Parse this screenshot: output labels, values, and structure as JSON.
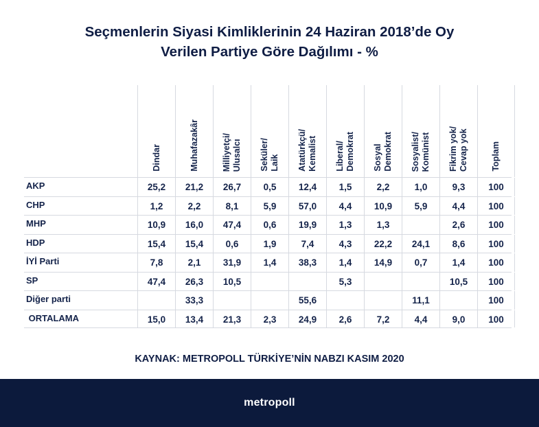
{
  "chart_data": {
    "type": "table",
    "title_line1": "Seçmenlerin Siyasi Kimliklerinin 24 Haziran 2018’de Oy",
    "title_line2": "Verilen Partiye Göre Dağılımı - %",
    "columns": [
      "Dindar",
      "Muhafazakâr",
      "Milliyetçi/\nUlusalcı",
      "Seküler/\nLaik",
      "Atatürkçü/\nKemalist",
      "Liberal/\nDemokrat",
      "Sosyal\nDemokrat",
      "Sosyalist/\nKomünist",
      "Fikrim yok/\nCevap yok",
      "Toplam"
    ],
    "rows": [
      {
        "label": "AKP",
        "values": [
          "25,2",
          "21,2",
          "26,7",
          "0,5",
          "12,4",
          "1,5",
          "2,2",
          "1,0",
          "9,3",
          "100"
        ]
      },
      {
        "label": "CHP",
        "values": [
          "1,2",
          "2,2",
          "8,1",
          "5,9",
          "57,0",
          "4,4",
          "10,9",
          "5,9",
          "4,4",
          "100"
        ]
      },
      {
        "label": "MHP",
        "values": [
          "10,9",
          "16,0",
          "47,4",
          "0,6",
          "19,9",
          "1,3",
          "1,3",
          "",
          "2,6",
          "100"
        ]
      },
      {
        "label": "HDP",
        "values": [
          "15,4",
          "15,4",
          "0,6",
          "1,9",
          "7,4",
          "4,3",
          "22,2",
          "24,1",
          "8,6",
          "100"
        ]
      },
      {
        "label": "İYİ Parti",
        "values": [
          "7,8",
          "2,1",
          "31,9",
          "1,4",
          "38,3",
          "1,4",
          "14,9",
          "0,7",
          "1,4",
          "100"
        ]
      },
      {
        "label": "SP",
        "values": [
          "47,4",
          "26,3",
          "10,5",
          "",
          "",
          "5,3",
          "",
          "",
          "10,5",
          "100"
        ]
      },
      {
        "label": "Diğer parti",
        "values": [
          "",
          "33,3",
          "",
          "",
          "55,6",
          "",
          "",
          "11,1",
          "",
          "100"
        ]
      },
      {
        "label": " ORTALAMA",
        "values": [
          "15,0",
          "13,4",
          "21,3",
          "2,3",
          "24,9",
          "2,6",
          "7,2",
          "4,4",
          "9,0",
          "100"
        ]
      }
    ],
    "source": "KAYNAK: METROPOLL TÜRKİYE’NİN NABZI KASIM 2020"
  },
  "footer": {
    "logo": "metropoll"
  }
}
